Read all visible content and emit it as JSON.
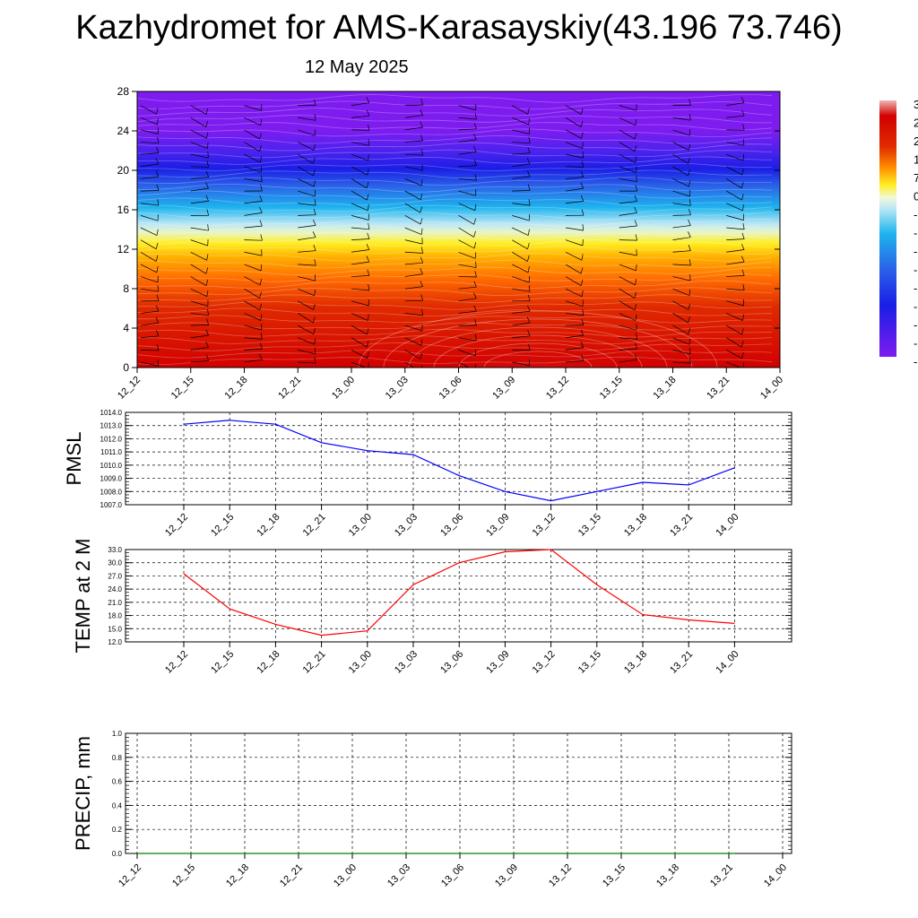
{
  "title": "Kazhydromet for AMS-Karasayskiy(43.196 73.746)",
  "subtitle": "12 May 2025",
  "time_labels": [
    "12_12",
    "12_15",
    "12_18",
    "12_21",
    "13_00",
    "13_03",
    "13_06",
    "13_09",
    "13_12",
    "13_15",
    "13_18",
    "13_21",
    "14_00"
  ],
  "colorbar_labels_visible": [
    "3",
    "2",
    "2",
    "1",
    "7",
    "0",
    "-",
    "-",
    "-",
    "-",
    "-",
    "-",
    "-",
    "-",
    "-"
  ],
  "chart_data": [
    {
      "type": "heatmap",
      "name": "cross-section",
      "y_ticks": [
        0,
        4,
        8,
        12,
        16,
        20,
        24,
        28
      ],
      "ylim": [
        0,
        28
      ],
      "x_tick_labels": [
        "12_12",
        "12_15",
        "12_18",
        "12_21",
        "13_00",
        "13_03",
        "13_06",
        "13_09",
        "13_12",
        "13_15",
        "13_18",
        "13_21",
        "14_00"
      ],
      "colors": {
        "low": "#d40000",
        "mid_orange": "#ff8c00",
        "yellow": "#ffee22",
        "light_blue": "#bde8f5",
        "cyan": "#1eb4ee",
        "blue": "#1a1ee6",
        "purple": "#7e1cf0"
      }
    },
    {
      "type": "line",
      "ylabel": "PMSL",
      "ylim": [
        1007.0,
        1014.0
      ],
      "y_ticks": [
        "1007.0",
        "1008.0",
        "1009.0",
        "1010.0",
        "1011.0",
        "1012.0",
        "1013.0",
        "1014.0"
      ],
      "categories": [
        "12_12",
        "12_15",
        "12_18",
        "12_21",
        "13_00",
        "13_03",
        "13_06",
        "13_09",
        "13_12",
        "13_15",
        "13_18",
        "13_21",
        "14_00"
      ],
      "values": [
        1013.1,
        1013.4,
        1013.1,
        1011.7,
        1011.1,
        1010.8,
        1009.2,
        1008.0,
        1007.3,
        1008.0,
        1008.7,
        1008.5,
        1009.8
      ],
      "color": "#0000ff",
      "grid": true
    },
    {
      "type": "line",
      "ylabel": "TEMP at 2 M",
      "ylim": [
        12.0,
        33.0
      ],
      "y_ticks": [
        "12.0",
        "15.0",
        "18.0",
        "21.0",
        "24.0",
        "27.0",
        "30.0",
        "33.0"
      ],
      "categories": [
        "12_12",
        "12_15",
        "12_18",
        "12_21",
        "13_00",
        "13_03",
        "13_06",
        "13_09",
        "13_12",
        "13_15",
        "13_18",
        "13_21",
        "14_00"
      ],
      "values": [
        27.5,
        19.5,
        16.0,
        13.5,
        14.5,
        25.0,
        30.0,
        32.5,
        33.0,
        25.0,
        18.2,
        17.0,
        16.2
      ],
      "color": "#ff0000",
      "grid": true
    },
    {
      "type": "line",
      "ylabel": "PRECIP, mm",
      "ylim": [
        0.0,
        1.0
      ],
      "y_ticks": [
        "0.0",
        "0.2",
        "0.4",
        "0.6",
        "0.8",
        "1.0"
      ],
      "categories": [
        "12_12",
        "12_15",
        "12_18",
        "12_21",
        "13_00",
        "13_03",
        "13_06",
        "13_09",
        "13_12",
        "13_15",
        "13_18",
        "13_21",
        "14_00"
      ],
      "values": [
        0,
        0,
        0,
        0,
        0,
        0,
        0,
        0,
        0,
        0,
        0,
        0,
        0
      ],
      "color": "#008000",
      "grid": true
    }
  ]
}
